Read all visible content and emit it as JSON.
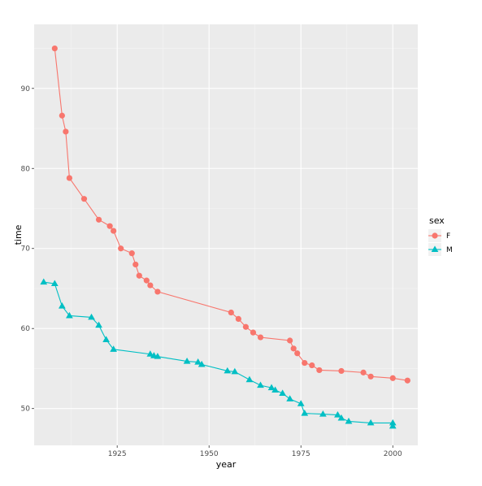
{
  "colors": {
    "panel": "#ebebeb",
    "grid_major": "#ffffff",
    "grid_minor": "#f5f5f5",
    "F": "#f8766d",
    "M": "#00bfc4"
  },
  "chart_data": {
    "type": "line",
    "xlabel": "year",
    "ylabel": "time",
    "xlim": [
      1902.4,
      2006.8
    ],
    "ylim": [
      45.4,
      98.0
    ],
    "x_ticks": [
      1925,
      1950,
      1975,
      2000
    ],
    "y_ticks": [
      50,
      60,
      70,
      80,
      90
    ],
    "grid": true,
    "legend": {
      "title": "sex",
      "placement": "right",
      "entries": [
        "F",
        "M"
      ]
    },
    "series": [
      {
        "name": "F",
        "marker": "circle",
        "x": [
          1908,
          1910,
          1911,
          1912,
          1916,
          1920,
          1923,
          1924,
          1926,
          1929,
          1930,
          1931,
          1933,
          1934,
          1936,
          1956,
          1958,
          1960,
          1962,
          1964,
          1972,
          1973,
          1974,
          1976,
          1978,
          1980,
          1986,
          1992,
          1994,
          2000,
          2004
        ],
        "y": [
          95.0,
          86.6,
          84.6,
          78.8,
          76.2,
          73.6,
          72.8,
          72.2,
          70.0,
          69.4,
          68.0,
          66.6,
          66.0,
          65.4,
          64.6,
          62.0,
          61.2,
          60.2,
          59.5,
          58.9,
          58.5,
          57.5,
          56.9,
          55.7,
          55.4,
          54.8,
          54.7,
          54.5,
          54.0,
          53.8,
          53.5
        ]
      },
      {
        "name": "M",
        "marker": "triangle",
        "x": [
          1905,
          1908,
          1910,
          1912,
          1918,
          1920,
          1922,
          1924,
          1934,
          1935,
          1936,
          1944,
          1947,
          1948,
          1955,
          1957,
          1961,
          1964,
          1967,
          1968,
          1970,
          1972,
          1975,
          1976,
          1981,
          1985,
          1986,
          1988,
          1994,
          2000,
          2000
        ],
        "y": [
          65.8,
          65.6,
          62.8,
          61.6,
          61.4,
          60.4,
          58.6,
          57.4,
          56.8,
          56.6,
          56.5,
          55.9,
          55.8,
          55.5,
          54.7,
          54.6,
          53.6,
          52.9,
          52.6,
          52.3,
          51.9,
          51.2,
          50.6,
          49.4,
          49.3,
          49.2,
          48.8,
          48.4,
          48.2,
          48.2,
          47.8
        ]
      }
    ]
  }
}
